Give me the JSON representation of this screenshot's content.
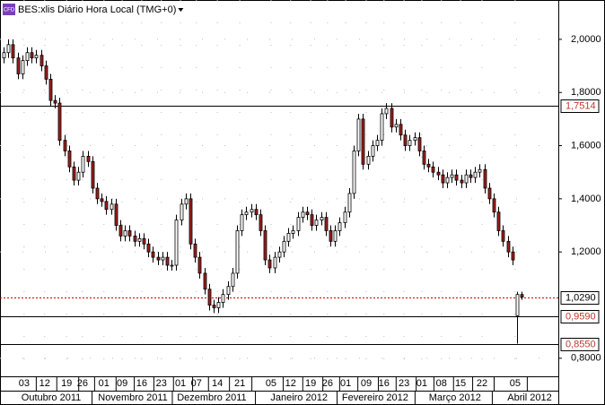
{
  "chart_data": {
    "type": "candlestick",
    "icon": "CFD",
    "title": "BES:xlis Diário Hora Local (TMG+0)",
    "up_color": "#ffffff",
    "down_color": "#a01e1e",
    "open": [
      1.93,
      1.95,
      1.98,
      1.93,
      1.87,
      1.92,
      1.95,
      1.93,
      1.94,
      1.9,
      1.85,
      1.77,
      1.76,
      1.62,
      1.58,
      1.52,
      1.47,
      1.5,
      1.56,
      1.54,
      1.44,
      1.4,
      1.39,
      1.36,
      1.38,
      1.3,
      1.26,
      1.28,
      1.26,
      1.24,
      1.25,
      1.23,
      1.2,
      1.18,
      1.17,
      1.18,
      1.15,
      1.15,
      1.32,
      1.38,
      1.4,
      1.23,
      1.18,
      1.12,
      1.06,
      1.0,
      0.99,
      1.01,
      1.04,
      1.07,
      1.12,
      1.28,
      1.34,
      1.35,
      1.36,
      1.34,
      1.28,
      1.17,
      1.14,
      1.18,
      1.2,
      1.24,
      1.27,
      1.28,
      1.33,
      1.35,
      1.34,
      1.3,
      1.32,
      1.33,
      1.28,
      1.24,
      1.28,
      1.31,
      1.35,
      1.42,
      1.58,
      1.7,
      1.53,
      1.56,
      1.6,
      1.62,
      1.72,
      1.74,
      1.67,
      1.68,
      1.64,
      1.6,
      1.62,
      1.63,
      1.58,
      1.53,
      1.52,
      1.5,
      1.49,
      1.46,
      1.48,
      1.49,
      1.47,
      1.46,
      1.49,
      1.48,
      1.5,
      1.51,
      1.44,
      1.4,
      1.35,
      1.28,
      1.24,
      1.2,
      0.96,
      1.04
    ],
    "high": [
      1.97,
      2.0,
      2.0,
      1.95,
      1.94,
      1.97,
      1.97,
      1.96,
      1.96,
      1.92,
      1.87,
      1.79,
      1.78,
      1.64,
      1.6,
      1.54,
      1.52,
      1.58,
      1.58,
      1.56,
      1.46,
      1.42,
      1.41,
      1.4,
      1.4,
      1.32,
      1.3,
      1.3,
      1.28,
      1.27,
      1.27,
      1.25,
      1.22,
      1.2,
      1.2,
      1.2,
      1.17,
      1.34,
      1.4,
      1.42,
      1.42,
      1.25,
      1.2,
      1.14,
      1.08,
      1.02,
      1.03,
      1.06,
      1.09,
      1.14,
      1.3,
      1.36,
      1.37,
      1.38,
      1.38,
      1.36,
      1.3,
      1.19,
      1.2,
      1.22,
      1.26,
      1.29,
      1.3,
      1.35,
      1.37,
      1.37,
      1.36,
      1.34,
      1.35,
      1.35,
      1.3,
      1.3,
      1.33,
      1.37,
      1.44,
      1.6,
      1.72,
      1.72,
      1.58,
      1.62,
      1.64,
      1.74,
      1.76,
      1.76,
      1.7,
      1.7,
      1.66,
      1.64,
      1.65,
      1.65,
      1.6,
      1.55,
      1.54,
      1.52,
      1.51,
      1.5,
      1.51,
      1.51,
      1.49,
      1.51,
      1.51,
      1.52,
      1.53,
      1.53,
      1.46,
      1.42,
      1.37,
      1.3,
      1.26,
      1.22,
      1.05,
      1.05
    ],
    "low": [
      1.91,
      1.93,
      1.91,
      1.85,
      1.85,
      1.9,
      1.91,
      1.91,
      1.88,
      1.83,
      1.75,
      1.74,
      1.6,
      1.56,
      1.5,
      1.45,
      1.45,
      1.48,
      1.52,
      1.42,
      1.38,
      1.37,
      1.34,
      1.34,
      1.28,
      1.24,
      1.24,
      1.24,
      1.22,
      1.22,
      1.21,
      1.18,
      1.16,
      1.15,
      1.15,
      1.13,
      1.13,
      1.13,
      1.3,
      1.36,
      1.21,
      1.16,
      1.1,
      1.04,
      0.98,
      0.97,
      0.97,
      0.99,
      1.02,
      1.05,
      1.1,
      1.26,
      1.32,
      1.33,
      1.32,
      1.26,
      1.15,
      1.12,
      1.12,
      1.16,
      1.18,
      1.22,
      1.25,
      1.26,
      1.31,
      1.32,
      1.28,
      1.28,
      1.3,
      1.26,
      1.22,
      1.22,
      1.26,
      1.29,
      1.33,
      1.4,
      1.56,
      1.51,
      1.51,
      1.54,
      1.58,
      1.6,
      1.7,
      1.65,
      1.65,
      1.62,
      1.58,
      1.58,
      1.6,
      1.56,
      1.51,
      1.5,
      1.48,
      1.47,
      1.44,
      1.44,
      1.46,
      1.45,
      1.44,
      1.44,
      1.46,
      1.46,
      1.48,
      1.42,
      1.38,
      1.33,
      1.26,
      1.22,
      1.18,
      1.15,
      0.855,
      1.02
    ],
    "close": [
      1.95,
      1.98,
      1.93,
      1.87,
      1.92,
      1.95,
      1.93,
      1.94,
      1.9,
      1.85,
      1.77,
      1.76,
      1.62,
      1.58,
      1.52,
      1.47,
      1.5,
      1.56,
      1.54,
      1.44,
      1.4,
      1.39,
      1.36,
      1.38,
      1.3,
      1.26,
      1.28,
      1.26,
      1.24,
      1.25,
      1.23,
      1.2,
      1.18,
      1.17,
      1.18,
      1.15,
      1.15,
      1.32,
      1.38,
      1.4,
      1.23,
      1.18,
      1.12,
      1.06,
      1.0,
      0.99,
      1.01,
      1.04,
      1.07,
      1.12,
      1.28,
      1.34,
      1.35,
      1.36,
      1.34,
      1.28,
      1.17,
      1.14,
      1.18,
      1.2,
      1.24,
      1.27,
      1.28,
      1.33,
      1.35,
      1.34,
      1.3,
      1.32,
      1.33,
      1.28,
      1.24,
      1.28,
      1.31,
      1.35,
      1.42,
      1.58,
      1.7,
      1.53,
      1.56,
      1.6,
      1.62,
      1.72,
      1.74,
      1.67,
      1.68,
      1.64,
      1.6,
      1.62,
      1.63,
      1.58,
      1.53,
      1.52,
      1.5,
      1.49,
      1.46,
      1.48,
      1.49,
      1.47,
      1.46,
      1.49,
      1.48,
      1.5,
      1.51,
      1.44,
      1.4,
      1.35,
      1.28,
      1.24,
      1.2,
      1.17,
      1.04,
      1.03
    ],
    "xlim": [
      -0.77,
      118.85
    ],
    "ylim": [
      0.732,
      2.148
    ],
    "yticks": [
      {
        "value": 0.8,
        "label": "0,8000"
      },
      {
        "value": 1.2,
        "label": "1,2000"
      },
      {
        "value": 1.4,
        "label": "1,4000"
      },
      {
        "value": 1.6,
        "label": "1,6000"
      },
      {
        "value": 1.8,
        "label": "1,8000"
      },
      {
        "value": 2.0,
        "label": "2,0000"
      }
    ],
    "xticks": [
      {
        "value": 4.4,
        "label": "03"
      },
      {
        "value": 8.8,
        "label": "12"
      },
      {
        "value": 13.5,
        "label": "19"
      },
      {
        "value": 16.9,
        "label": "26"
      },
      {
        "value": 21.5,
        "label": "01"
      },
      {
        "value": 25.4,
        "label": "09"
      },
      {
        "value": 29.6,
        "label": "16"
      },
      {
        "value": 33.8,
        "label": "23"
      },
      {
        "value": 37.9,
        "label": "01"
      },
      {
        "value": 41.3,
        "label": "07"
      },
      {
        "value": 45.8,
        "label": "14"
      },
      {
        "value": 50.6,
        "label": "21"
      },
      {
        "value": 57.3,
        "label": "05"
      },
      {
        "value": 61.5,
        "label": "12"
      },
      {
        "value": 65.8,
        "label": "19"
      },
      {
        "value": 69.4,
        "label": "26"
      },
      {
        "value": 73.3,
        "label": "01"
      },
      {
        "value": 77.7,
        "label": "09"
      },
      {
        "value": 81.5,
        "label": "16"
      },
      {
        "value": 85.8,
        "label": "23"
      },
      {
        "value": 89.6,
        "label": "01"
      },
      {
        "value": 93.8,
        "label": "08"
      },
      {
        "value": 97.9,
        "label": "15"
      },
      {
        "value": 102.5,
        "label": "22"
      },
      {
        "value": 109.6,
        "label": "05"
      }
    ],
    "month_ticks": [
      {
        "value": 10.2,
        "label": "Outubro 2011"
      },
      {
        "value": 27.7,
        "label": "Novembro 2011"
      },
      {
        "value": 44.6,
        "label": "Dezembro 2011"
      },
      {
        "value": 63.3,
        "label": "Janeiro 2012"
      },
      {
        "value": 79.6,
        "label": "Fevereiro 2012"
      },
      {
        "value": 96.7,
        "label": "Março 2012"
      },
      {
        "value": 112.7,
        "label": "Abril 2012"
      }
    ],
    "levels": [
      {
        "value": 1.7514,
        "label": "1,7514",
        "color": "#000000",
        "text_color": "#c0392b",
        "style": "solid"
      },
      {
        "value": 1.029,
        "label": "1,0290",
        "color": "#cc0000",
        "text_color": "#000000",
        "style": "dotted"
      },
      {
        "value": 0.959,
        "label": "0,9590",
        "color": "#000000",
        "text_color": "#c0392b",
        "style": "solid"
      },
      {
        "value": 0.855,
        "label": "0,8550",
        "color": "#000000",
        "text_color": "#c0392b",
        "style": "solid"
      }
    ],
    "grid": true
  }
}
